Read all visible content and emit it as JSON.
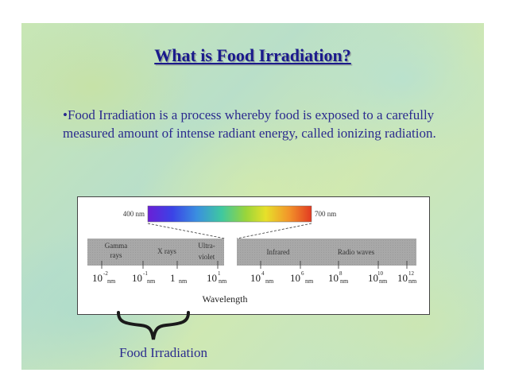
{
  "slide": {
    "title": "What is Food Irradiation?",
    "bullet": "•Food Irradiation is a process whereby food is exposed to a carefully measured amount of intense radiant energy, called ionizing radiation.",
    "caption": "Food Irradiation"
  },
  "figure": {
    "visible_start_label": "400 nm",
    "visible_end_label": "700 nm",
    "bands": [
      {
        "label_lines": [
          "Gamma",
          "rays"
        ]
      },
      {
        "label_lines": [
          "X rays"
        ]
      },
      {
        "label_lines": [
          "Ultra-",
          "violet"
        ]
      },
      {
        "label_lines": [
          "Infrared"
        ]
      },
      {
        "label_lines": [
          "Radio waves"
        ]
      }
    ],
    "ticks": [
      {
        "base": "10",
        "exp": "-2",
        "unit": "nm"
      },
      {
        "base": "10",
        "exp": "-1",
        "unit": "nm"
      },
      {
        "base": "1",
        "exp": "",
        "unit": "nm"
      },
      {
        "base": "10",
        "exp": "1",
        "unit": "nm"
      },
      {
        "base": "10",
        "exp": "4",
        "unit": "nm"
      },
      {
        "base": "10",
        "exp": "6",
        "unit": "nm"
      },
      {
        "base": "10",
        "exp": "8",
        "unit": "nm"
      },
      {
        "base": "10",
        "exp": "10",
        "unit": "nm"
      },
      {
        "base": "10",
        "exp": "12",
        "unit": "nm"
      }
    ],
    "axis_label": "Wavelength"
  },
  "colors": {
    "title": "#1a1a8c",
    "body_text": "#2b2b8e",
    "band_fill": "#a8a8a8"
  }
}
